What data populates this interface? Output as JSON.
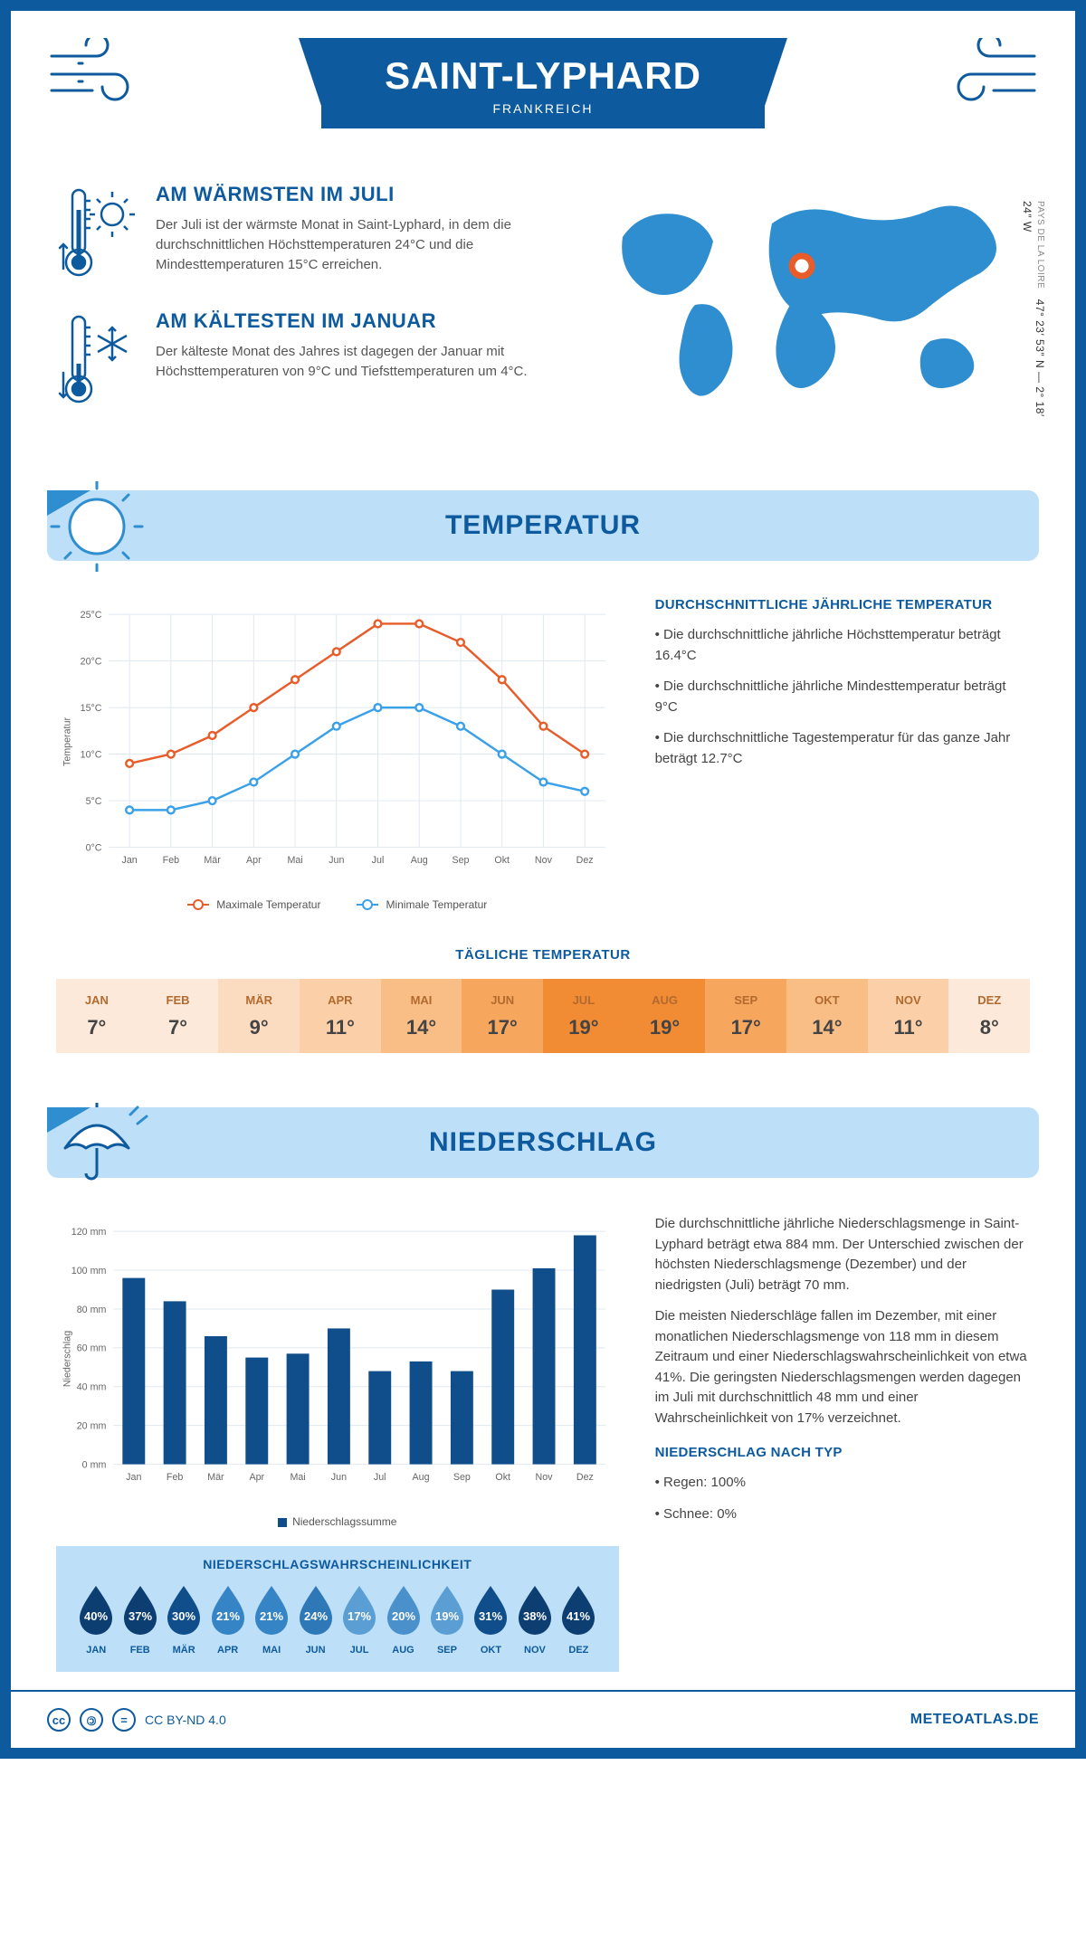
{
  "header": {
    "title": "SAINT-LYPHARD",
    "subtitle": "FRANKREICH"
  },
  "coords": {
    "lat": "47° 23′ 53″ N",
    "lon": "2° 18′ 24″ W",
    "region": "PAYS DE LA LOIRE"
  },
  "facts": {
    "warm": {
      "title": "AM WÄRMSTEN IM JULI",
      "text": "Der Juli ist der wärmste Monat in Saint-Lyphard, in dem die durchschnittlichen Höchsttemperaturen 24°C und die Mindesttemperaturen 15°C erreichen."
    },
    "cold": {
      "title": "AM KÄLTESTEN IM JANUAR",
      "text": "Der kälteste Monat des Jahres ist dagegen der Januar mit Höchsttemperaturen von 9°C und Tiefsttemperaturen um 4°C."
    }
  },
  "months_short": [
    "Jan",
    "Feb",
    "Mär",
    "Apr",
    "Mai",
    "Jun",
    "Jul",
    "Aug",
    "Sep",
    "Okt",
    "Nov",
    "Dez"
  ],
  "months_upper": [
    "JAN",
    "FEB",
    "MÄR",
    "APR",
    "MAI",
    "JUN",
    "JUL",
    "AUG",
    "SEP",
    "OKT",
    "NOV",
    "DEZ"
  ],
  "temperature": {
    "section_title": "TEMPERATUR",
    "ylabel": "Temperatur",
    "y_ticks": [
      0,
      5,
      10,
      15,
      20,
      25
    ],
    "y_tick_labels": [
      "0°C",
      "5°C",
      "10°C",
      "15°C",
      "20°C",
      "25°C"
    ],
    "max_series": {
      "label": "Maximale Temperatur",
      "color": "#e85c2a",
      "values": [
        9,
        10,
        12,
        15,
        18,
        21,
        24,
        24,
        22,
        18,
        13,
        10
      ]
    },
    "min_series": {
      "label": "Minimale Temperatur",
      "color": "#3aa0e8",
      "values": [
        4,
        4,
        5,
        7,
        10,
        13,
        15,
        15,
        13,
        10,
        7,
        6
      ]
    },
    "grid_color": "#dfe8f0",
    "background": "#ffffff",
    "side": {
      "title": "DURCHSCHNITTLICHE JÄHRLICHE TEMPERATUR",
      "b1": "• Die durchschnittliche jährliche Höchsttemperatur beträgt 16.4°C",
      "b2": "• Die durchschnittliche jährliche Mindesttemperatur beträgt 9°C",
      "b3": "• Die durchschnittliche Tagestemperatur für das ganze Jahr beträgt 12.7°C"
    }
  },
  "daily_temp": {
    "title": "TÄGLICHE TEMPERATUR",
    "values": [
      7,
      7,
      9,
      11,
      14,
      17,
      19,
      19,
      17,
      14,
      11,
      8
    ],
    "colors": [
      "#fce9d9",
      "#fce9d9",
      "#fcdcc1",
      "#fbd0a9",
      "#f9bd86",
      "#f7a65d",
      "#f18b34",
      "#f18b34",
      "#f7a65d",
      "#f9bd86",
      "#fbd0a9",
      "#fce9d9"
    ],
    "label_color": "#b36a2f",
    "value_color": "#444"
  },
  "precip": {
    "section_title": "NIEDERSCHLAG",
    "ylabel": "Niederschlag",
    "y_ticks": [
      0,
      20,
      40,
      60,
      80,
      100,
      120
    ],
    "y_tick_labels": [
      "0 mm",
      "20 mm",
      "40 mm",
      "60 mm",
      "80 mm",
      "100 mm",
      "120 mm"
    ],
    "bar_color": "#104e8b",
    "values": [
      96,
      84,
      66,
      55,
      57,
      70,
      48,
      53,
      48,
      90,
      101,
      118
    ],
    "legend": "Niederschlagssumme",
    "grid_color": "#dfe8f0",
    "text1": "Die durchschnittliche jährliche Niederschlagsmenge in Saint-Lyphard beträgt etwa 884 mm. Der Unterschied zwischen der höchsten Niederschlagsmenge (Dezember) und der niedrigsten (Juli) beträgt 70 mm.",
    "text2": "Die meisten Niederschläge fallen im Dezember, mit einer monatlichen Niederschlagsmenge von 118 mm in diesem Zeitraum und einer Niederschlagswahrscheinlichkeit von etwa 41%. Die geringsten Niederschlagsmengen werden dagegen im Juli mit durchschnittlich 48 mm und einer Wahrscheinlichkeit von 17% verzeichnet.",
    "type_title": "NIEDERSCHLAG NACH TYP",
    "type1": "• Regen: 100%",
    "type2": "• Schnee: 0%"
  },
  "precip_prob": {
    "title": "NIEDERSCHLAGSWAHRSCHEINLICHKEIT",
    "values": [
      40,
      37,
      30,
      21,
      21,
      24,
      17,
      20,
      19,
      31,
      38,
      41
    ],
    "colors": [
      "#0d3e72",
      "#0d3e72",
      "#104e8b",
      "#3584c6",
      "#3584c6",
      "#2f78b8",
      "#5a9ed4",
      "#4a91cb",
      "#5a9ed4",
      "#104e8b",
      "#0d3e72",
      "#0d3e72"
    ]
  },
  "footer": {
    "license": "CC BY-ND 4.0",
    "site": "METEOATLAS.DE"
  }
}
